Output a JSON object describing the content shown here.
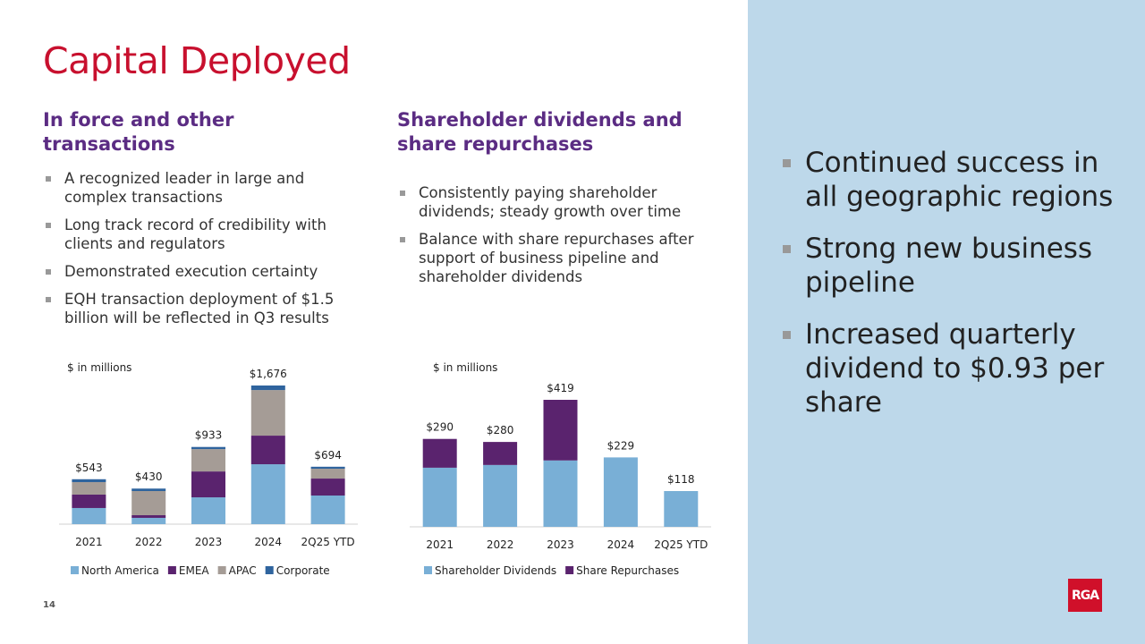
{
  "title": "Capital Deployed",
  "left": {
    "heading": "In force and other transactions",
    "bullets": [
      "A recognized leader in large and complex transactions",
      "Long track record of credibility with clients and regulators",
      "Demonstrated execution certainty",
      "EQH transaction deployment of $1.5 billion will be reflected in Q3 results"
    ]
  },
  "middle": {
    "heading": "Shareholder dividends and share repurchases",
    "bullets": [
      "Consistently paying shareholder dividends; steady growth over time",
      "Balance with share repurchases after support of business pipeline and shareholder dividends"
    ]
  },
  "panel": {
    "bullets": [
      "Continued success in all geographic regions",
      "Strong new business pipeline",
      "Increased quarterly dividend to $0.93 per share"
    ]
  },
  "page_number": "14",
  "logo": "RGA",
  "chart_data": [
    {
      "type": "bar",
      "stacked": true,
      "note": "$ in millions",
      "categories": [
        "2021",
        "2022",
        "2023",
        "2024",
        "2Q25 YTD"
      ],
      "series": [
        {
          "name": "North America",
          "color": "#79afd6",
          "values": [
            195,
            76,
            324,
            724,
            346
          ]
        },
        {
          "name": "EMEA",
          "color": "#5a236e",
          "values": [
            162,
            32,
            313,
            346,
            205
          ]
        },
        {
          "name": "APAC",
          "color": "#a59c96",
          "values": [
            151,
            292,
            270,
            551,
            119
          ]
        },
        {
          "name": "Corporate",
          "color": "#2f649e",
          "values": [
            35,
            30,
            26,
            55,
            24
          ]
        }
      ],
      "totals": [
        "$543",
        "$430",
        "$933",
        "$1,676",
        "$694"
      ],
      "legend": "bottom",
      "grid": false
    },
    {
      "type": "bar",
      "stacked": true,
      "note": "$ in millions",
      "categories": [
        "2021",
        "2022",
        "2023",
        "2024",
        "2Q25 YTD"
      ],
      "series": [
        {
          "name": "Shareholder Dividends",
          "color": "#79afd6",
          "values": [
            195,
            204,
            219,
            229,
            118
          ]
        },
        {
          "name": "Share Repurchases",
          "color": "#5a236e",
          "values": [
            95,
            76,
            200,
            0,
            0
          ]
        }
      ],
      "totals": [
        "$290",
        "$280",
        "$419",
        "$229",
        "$118"
      ],
      "legend": "bottom",
      "grid": false
    }
  ]
}
